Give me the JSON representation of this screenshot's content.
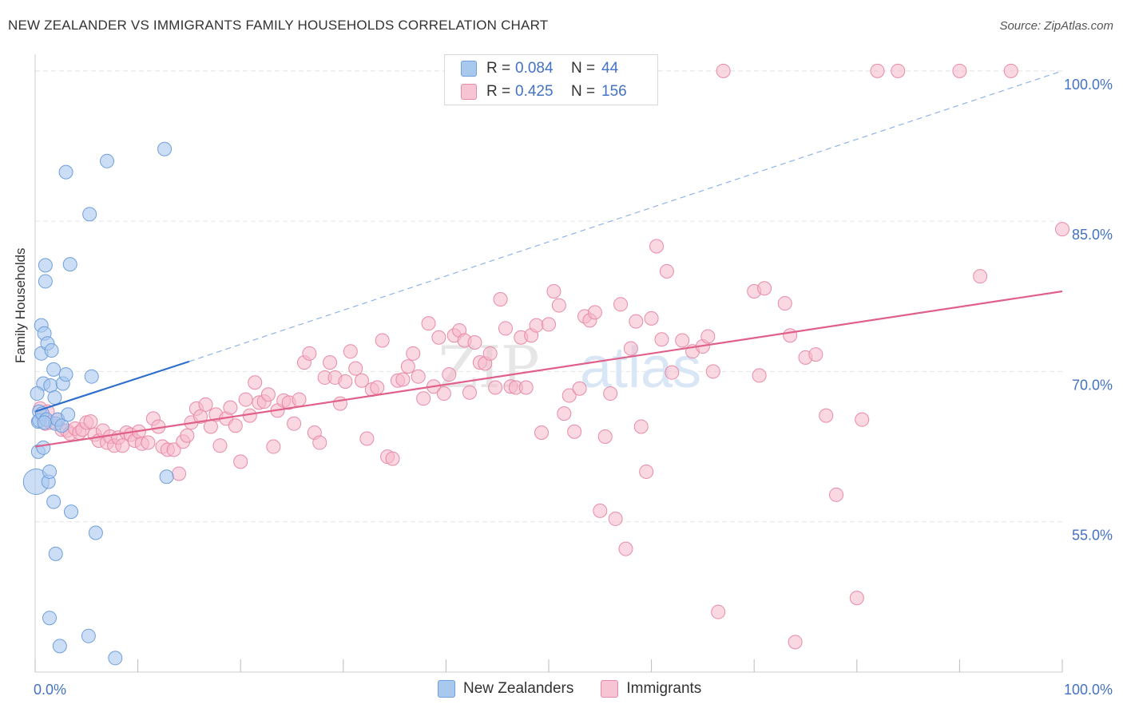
{
  "title": "NEW ZEALANDER VS IMMIGRANTS FAMILY HOUSEHOLDS CORRELATION CHART",
  "source": "Source: ZipAtlas.com",
  "watermark": {
    "zip": "ZIP",
    "atlas": "atlas"
  },
  "legend": {
    "series1": {
      "r_label": "R =",
      "r_value": "0.084",
      "n_label": "N =",
      "n_value": "44"
    },
    "series2": {
      "r_label": "R =",
      "r_value": "0.425",
      "n_label": "N =",
      "n_value": "156"
    }
  },
  "bottom_legend": {
    "series1": "New Zealanders",
    "series2": "Immigrants"
  },
  "colors": {
    "blue_fill": "#a8c8ee",
    "blue_stroke": "#6f9fdc",
    "blue_line": "#2f6fcc",
    "pink_fill": "#f6b8cb",
    "pink_stroke": "#e88aa8",
    "pink_line": "#e0608a",
    "tick_label": "#4472c4",
    "grid": "#e6e6e6"
  },
  "chart_data": {
    "type": "scatter",
    "title": "NEW ZEALANDER VS IMMIGRANTS FAMILY HOUSEHOLDS CORRELATION CHART",
    "xlabel": "",
    "ylabel": "Family Households",
    "xlim": [
      0,
      100
    ],
    "ylim": [
      40,
      101.5
    ],
    "x_tick_labels": [
      "0.0%",
      "100.0%"
    ],
    "y_ticks": [
      55,
      70,
      85,
      100
    ],
    "y_tick_labels": [
      "55.0%",
      "70.0%",
      "85.0%",
      "100.0%"
    ],
    "grid": true,
    "series": [
      {
        "name": "New Zealanders",
        "r": 0.084,
        "n": 44,
        "points": [
          [
            0.1,
            59.0
          ],
          [
            0.3,
            62.0
          ],
          [
            0.3,
            65.0
          ],
          [
            0.4,
            66.0
          ],
          [
            0.4,
            65.1
          ],
          [
            0.6,
            71.8
          ],
          [
            0.6,
            74.6
          ],
          [
            0.7,
            65.8
          ],
          [
            0.8,
            68.8
          ],
          [
            0.8,
            62.4
          ],
          [
            0.9,
            73.8
          ],
          [
            1.0,
            79.0
          ],
          [
            1.0,
            80.6
          ],
          [
            1.1,
            65.2
          ],
          [
            1.2,
            72.8
          ],
          [
            1.3,
            59.0
          ],
          [
            1.4,
            60.0
          ],
          [
            1.4,
            45.4
          ],
          [
            1.5,
            68.6
          ],
          [
            1.6,
            72.1
          ],
          [
            1.8,
            70.2
          ],
          [
            1.8,
            57.0
          ],
          [
            1.9,
            67.4
          ],
          [
            2.0,
            64.8
          ],
          [
            2.0,
            51.8
          ],
          [
            2.2,
            65.2
          ],
          [
            2.4,
            42.6
          ],
          [
            2.6,
            64.6
          ],
          [
            2.7,
            68.8
          ],
          [
            3.0,
            69.7
          ],
          [
            3.0,
            89.9
          ],
          [
            3.2,
            65.7
          ],
          [
            3.4,
            80.7
          ],
          [
            3.5,
            56.0
          ],
          [
            5.3,
            85.7
          ],
          [
            5.2,
            43.6
          ],
          [
            5.5,
            69.5
          ],
          [
            5.9,
            53.9
          ],
          [
            7.0,
            91.0
          ],
          [
            7.8,
            41.4
          ],
          [
            12.6,
            92.2
          ],
          [
            12.8,
            59.5
          ],
          [
            0.2,
            67.8
          ],
          [
            0.9,
            64.9
          ]
        ]
      },
      {
        "name": "Immigrants",
        "r": 0.425,
        "n": 156,
        "points": [
          [
            0.5,
            66.3
          ],
          [
            0.7,
            65.5
          ],
          [
            1.0,
            64.8
          ],
          [
            1.2,
            66.0
          ],
          [
            1.5,
            64.9
          ],
          [
            2.2,
            65.2
          ],
          [
            2.6,
            64.2
          ],
          [
            3.1,
            64.1
          ],
          [
            3.4,
            63.8
          ],
          [
            3.9,
            64.3
          ],
          [
            4.3,
            63.9
          ],
          [
            4.6,
            64.2
          ],
          [
            5.0,
            64.9
          ],
          [
            5.4,
            65.0
          ],
          [
            5.8,
            63.7
          ],
          [
            6.2,
            63.1
          ],
          [
            6.6,
            64.1
          ],
          [
            7.0,
            62.9
          ],
          [
            7.3,
            63.5
          ],
          [
            7.7,
            62.6
          ],
          [
            8.1,
            63.4
          ],
          [
            8.5,
            62.6
          ],
          [
            8.9,
            63.9
          ],
          [
            9.3,
            63.7
          ],
          [
            9.7,
            63.1
          ],
          [
            10.1,
            64.0
          ],
          [
            10.4,
            62.8
          ],
          [
            11.0,
            62.9
          ],
          [
            11.5,
            65.3
          ],
          [
            12.0,
            64.5
          ],
          [
            12.4,
            62.5
          ],
          [
            12.9,
            62.2
          ],
          [
            13.5,
            62.2
          ],
          [
            14.0,
            59.8
          ],
          [
            14.4,
            63.0
          ],
          [
            14.8,
            63.6
          ],
          [
            15.2,
            64.9
          ],
          [
            15.7,
            66.3
          ],
          [
            16.1,
            65.5
          ],
          [
            16.6,
            66.7
          ],
          [
            17.1,
            64.5
          ],
          [
            17.6,
            65.7
          ],
          [
            18.0,
            62.6
          ],
          [
            18.6,
            65.3
          ],
          [
            19.0,
            66.4
          ],
          [
            19.5,
            64.6
          ],
          [
            20.0,
            61.0
          ],
          [
            20.5,
            67.2
          ],
          [
            20.9,
            65.6
          ],
          [
            21.4,
            68.9
          ],
          [
            21.8,
            66.9
          ],
          [
            22.3,
            67.0
          ],
          [
            22.7,
            67.7
          ],
          [
            23.2,
            62.5
          ],
          [
            23.6,
            66.1
          ],
          [
            24.2,
            67.1
          ],
          [
            24.7,
            66.9
          ],
          [
            25.2,
            64.8
          ],
          [
            25.7,
            67.2
          ],
          [
            26.2,
            70.9
          ],
          [
            26.7,
            71.8
          ],
          [
            27.2,
            63.9
          ],
          [
            27.7,
            62.9
          ],
          [
            28.2,
            69.4
          ],
          [
            28.7,
            70.9
          ],
          [
            29.2,
            69.4
          ],
          [
            29.7,
            66.8
          ],
          [
            30.2,
            69.0
          ],
          [
            30.7,
            72.0
          ],
          [
            31.2,
            70.3
          ],
          [
            31.8,
            69.1
          ],
          [
            32.3,
            63.3
          ],
          [
            32.8,
            68.2
          ],
          [
            33.3,
            68.4
          ],
          [
            33.8,
            73.1
          ],
          [
            34.3,
            61.5
          ],
          [
            34.8,
            61.3
          ],
          [
            35.3,
            69.1
          ],
          [
            35.8,
            69.2
          ],
          [
            36.3,
            70.5
          ],
          [
            36.8,
            71.8
          ],
          [
            37.3,
            69.5
          ],
          [
            37.8,
            67.3
          ],
          [
            38.3,
            74.8
          ],
          [
            38.8,
            68.5
          ],
          [
            39.3,
            73.4
          ],
          [
            39.8,
            67.8
          ],
          [
            40.3,
            69.7
          ],
          [
            40.8,
            73.6
          ],
          [
            41.3,
            74.1
          ],
          [
            41.8,
            73.1
          ],
          [
            42.3,
            67.9
          ],
          [
            42.8,
            72.9
          ],
          [
            43.3,
            70.9
          ],
          [
            43.8,
            70.8
          ],
          [
            44.3,
            71.8
          ],
          [
            44.8,
            68.4
          ],
          [
            45.3,
            77.2
          ],
          [
            45.8,
            74.3
          ],
          [
            46.3,
            68.5
          ],
          [
            46.8,
            68.4
          ],
          [
            47.3,
            73.4
          ],
          [
            47.8,
            68.4
          ],
          [
            48.3,
            73.6
          ],
          [
            48.8,
            74.6
          ],
          [
            49.3,
            63.9
          ],
          [
            50.0,
            74.7
          ],
          [
            50.5,
            78.0
          ],
          [
            51.0,
            76.6
          ],
          [
            51.5,
            65.8
          ],
          [
            52.0,
            67.6
          ],
          [
            52.5,
            64.0
          ],
          [
            53.0,
            68.3
          ],
          [
            53.5,
            75.5
          ],
          [
            54.0,
            75.1
          ],
          [
            54.5,
            75.9
          ],
          [
            55.0,
            56.1
          ],
          [
            55.5,
            63.5
          ],
          [
            56.0,
            67.8
          ],
          [
            56.5,
            55.3
          ],
          [
            57.0,
            76.7
          ],
          [
            57.5,
            52.3
          ],
          [
            58.0,
            72.3
          ],
          [
            58.5,
            75.0
          ],
          [
            59.0,
            64.5
          ],
          [
            59.5,
            60.0
          ],
          [
            60.0,
            75.3
          ],
          [
            60.5,
            82.5
          ],
          [
            61.0,
            73.2
          ],
          [
            61.5,
            80.0
          ],
          [
            62.0,
            69.9
          ],
          [
            63.0,
            73.1
          ],
          [
            64.0,
            72.0
          ],
          [
            65.0,
            72.5
          ],
          [
            65.5,
            73.5
          ],
          [
            66.0,
            70.0
          ],
          [
            66.5,
            46.0
          ],
          [
            67.0,
            100.0
          ],
          [
            70.0,
            78.0
          ],
          [
            70.5,
            69.6
          ],
          [
            71.0,
            78.3
          ],
          [
            73.0,
            76.8
          ],
          [
            73.5,
            73.6
          ],
          [
            74.0,
            43.0
          ],
          [
            75.0,
            71.4
          ],
          [
            76.0,
            71.7
          ],
          [
            77.0,
            65.6
          ],
          [
            78.0,
            57.7
          ],
          [
            80.0,
            47.4
          ],
          [
            80.5,
            65.2
          ],
          [
            82.0,
            100.0
          ],
          [
            84.0,
            100.0
          ],
          [
            90.0,
            100.0
          ],
          [
            95.0,
            100.0
          ],
          [
            92.0,
            79.5
          ],
          [
            100.0,
            84.2
          ]
        ]
      }
    ],
    "trendlines": [
      {
        "series": "New Zealanders",
        "solid_from": [
          0,
          66.0
        ],
        "solid_to": [
          15,
          71.0
        ],
        "dashed_to": [
          100,
          100.0
        ]
      },
      {
        "series": "Immigrants",
        "from": [
          0,
          62.5
        ],
        "to": [
          100,
          78.0
        ]
      }
    ]
  }
}
